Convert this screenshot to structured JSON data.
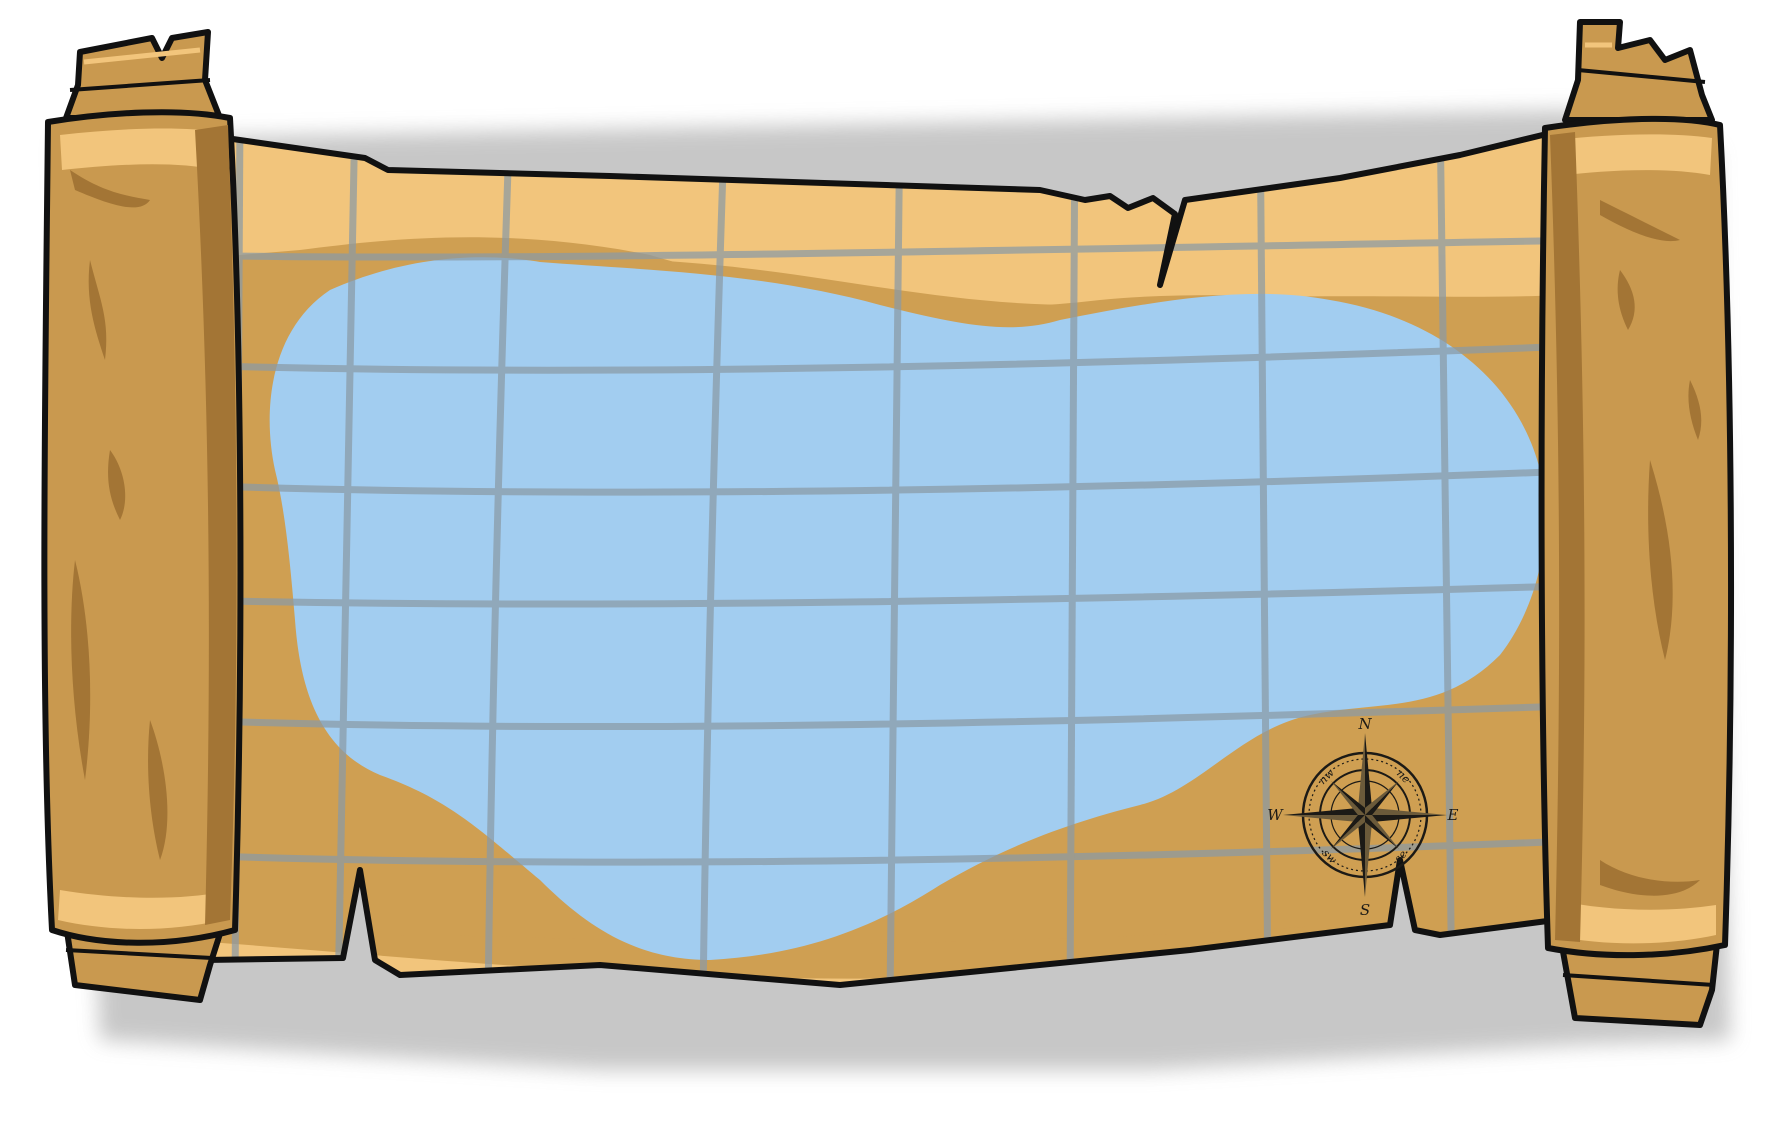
{
  "map": {
    "colors": {
      "outline": "#111111",
      "parchment": "#cf9f52",
      "parchment_light": "#f3c97f",
      "parchment_dark": "#a87b3a",
      "scroll_body": "#c9994f",
      "scroll_shade": "#a37535",
      "water": "#a2cdf0",
      "grid": "#8a9aa6",
      "shadow": "#c9c9c9"
    },
    "compass": {
      "north": "N",
      "south": "S",
      "east": "E",
      "west": "W",
      "northeast": "ne",
      "northwest": "nw",
      "southeast": "se",
      "southwest": "sw"
    }
  }
}
